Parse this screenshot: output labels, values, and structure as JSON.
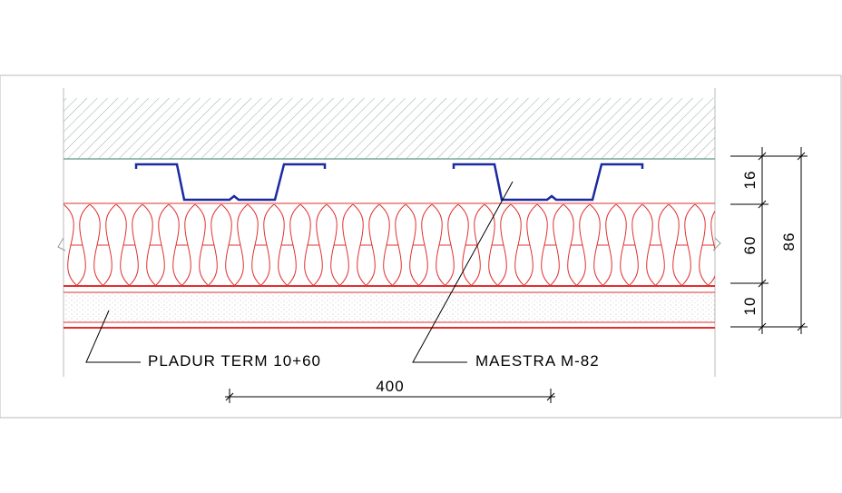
{
  "labels": {
    "product": "PLADUR TERM 10+60",
    "profile": "MAESTRA M-82"
  },
  "dimensions": {
    "width": "400",
    "layers": [
      "16",
      "60",
      "10"
    ],
    "total": "86"
  }
}
